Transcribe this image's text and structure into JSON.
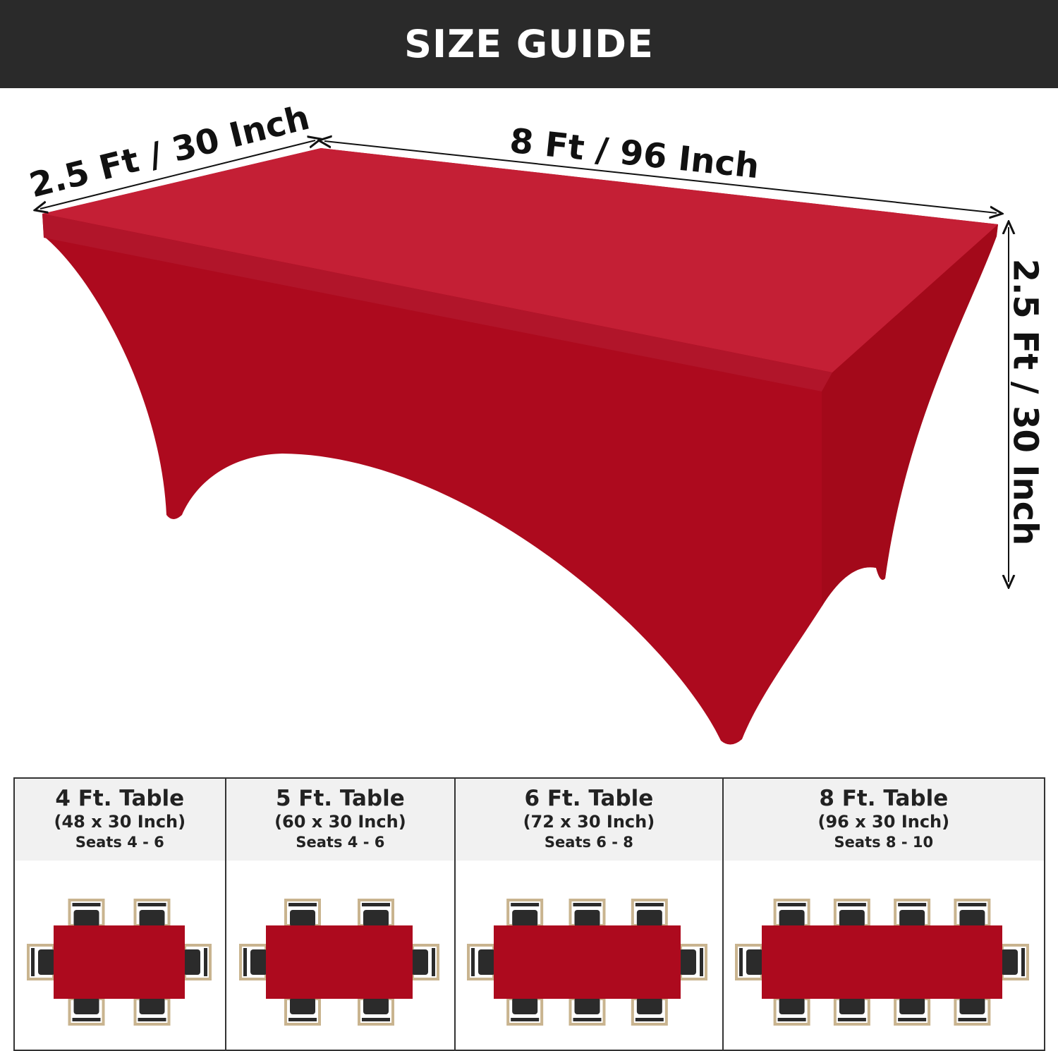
{
  "header": {
    "title": "SIZE GUIDE"
  },
  "dimensions": {
    "width_label": "2.5 Ft / 30 Inch",
    "length_label": "8 Ft / 96 Inch",
    "height_label": "2.5 Ft / 30 Inch"
  },
  "colors": {
    "header_bg": "#2a2a2a",
    "cloth_red": "#ad0a1e",
    "cloth_top": "#c41f35",
    "chair_seat": "#2b2b2b",
    "chair_frame": "#c9b48f"
  },
  "panels": [
    {
      "title": "4 Ft. Table",
      "dims": "(48 x 30 Inch)",
      "seats": "Seats 4 - 6",
      "chairs_per_side": 2
    },
    {
      "title": "5 Ft. Table",
      "dims": "(60 x 30 Inch)",
      "seats": "Seats 4 - 6",
      "chairs_per_side": 2
    },
    {
      "title": "6 Ft. Table",
      "dims": "(72 x 30 Inch)",
      "seats": "Seats 6 - 8",
      "chairs_per_side": 3
    },
    {
      "title": "8 Ft. Table",
      "dims": "(96 x 30 Inch)",
      "seats": "Seats 8 - 10",
      "chairs_per_side": 4
    }
  ]
}
